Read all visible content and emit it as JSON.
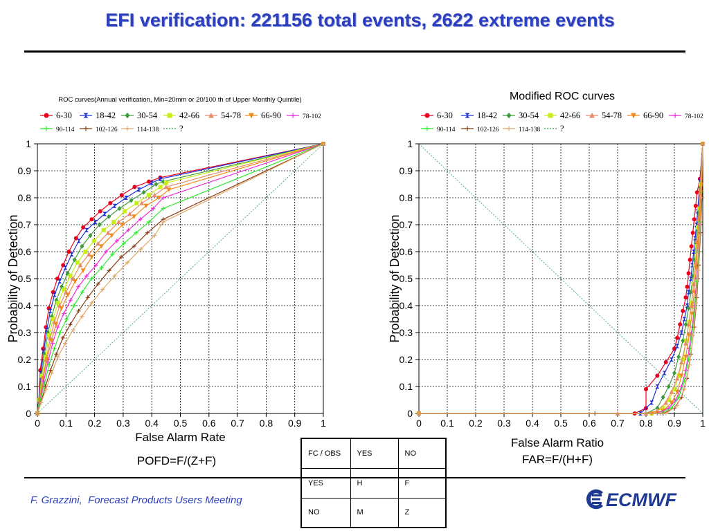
{
  "slide": {
    "title": "EFI verification: 221156 total events, 2622 extreme events",
    "footer": "F. Grazzini,  Forecast Products Users Meeting",
    "logo_text": "ECMWF",
    "formula_left": "POFD=F/(Z+F)",
    "formula_right_1": "False Alarm Ratio",
    "formula_right_2": "FAR=F/(H+F)"
  },
  "contingency_table": {
    "rows": [
      [
        "FC / OBS",
        "YES",
        "NO"
      ],
      [
        "YES",
        "H",
        "F"
      ],
      [
        "NO",
        "M",
        "Z"
      ]
    ]
  },
  "colors": {
    "title": "#2b3fbf",
    "diagonal": "#2e9b4a",
    "logo": "#1f3a93"
  },
  "chart_data": [
    {
      "type": "line",
      "title": "ROC curves(Annual verification, Min=20mm or 20/100 th of Upper Monthly Quintile)",
      "xlabel": "False Alarm Rate",
      "ylabel": "Probability of Detection",
      "xlim": [
        0,
        1
      ],
      "ylim": [
        0,
        1
      ],
      "xticks": [
        "0",
        "0.1",
        "0.2",
        "0.3",
        "0.4",
        "0.5",
        "0.6",
        "0.7",
        "0.8",
        "0.9",
        "1"
      ],
      "yticks": [
        "0",
        "0.1",
        "0.2",
        "0.3",
        "0.4",
        "0.5",
        "0.6",
        "0.7",
        "0.8",
        "0.9",
        "1"
      ],
      "grid": true,
      "legend": "top",
      "series": [
        {
          "name": "6-30",
          "color": "#e8001c",
          "marker": "circle",
          "x": [
            0,
            0.005,
            0.01,
            0.02,
            0.03,
            0.04,
            0.055,
            0.07,
            0.09,
            0.11,
            0.135,
            0.16,
            0.19,
            0.22,
            0.255,
            0.295,
            0.34,
            0.39,
            0.43,
            1
          ],
          "y": [
            0,
            0.05,
            0.16,
            0.24,
            0.32,
            0.39,
            0.45,
            0.5,
            0.55,
            0.6,
            0.65,
            0.69,
            0.72,
            0.75,
            0.78,
            0.81,
            0.84,
            0.86,
            0.875,
            1
          ]
        },
        {
          "name": "18-42",
          "color": "#1b2fd6",
          "marker": "bowtie",
          "x": [
            0,
            0.005,
            0.012,
            0.022,
            0.033,
            0.045,
            0.06,
            0.078,
            0.098,
            0.12,
            0.145,
            0.172,
            0.203,
            0.235,
            0.27,
            0.31,
            0.355,
            0.4,
            0.43,
            1
          ],
          "y": [
            0,
            0.05,
            0.15,
            0.23,
            0.31,
            0.38,
            0.44,
            0.49,
            0.54,
            0.59,
            0.64,
            0.68,
            0.71,
            0.74,
            0.77,
            0.8,
            0.83,
            0.855,
            0.87,
            1
          ]
        },
        {
          "name": "30-54",
          "color": "#3d9a3d",
          "marker": "diamond",
          "x": [
            0,
            0.006,
            0.014,
            0.025,
            0.037,
            0.05,
            0.066,
            0.085,
            0.106,
            0.13,
            0.156,
            0.185,
            0.217,
            0.25,
            0.287,
            0.328,
            0.372,
            0.415,
            0.44,
            1
          ],
          "y": [
            0,
            0.05,
            0.14,
            0.22,
            0.3,
            0.36,
            0.42,
            0.47,
            0.52,
            0.57,
            0.62,
            0.66,
            0.7,
            0.73,
            0.76,
            0.79,
            0.82,
            0.85,
            0.86,
            1
          ]
        },
        {
          "name": "42-66",
          "color": "#c8ee1a",
          "marker": "square",
          "x": [
            0,
            0.007,
            0.016,
            0.028,
            0.041,
            0.055,
            0.072,
            0.092,
            0.115,
            0.14,
            0.168,
            0.198,
            0.232,
            0.267,
            0.305,
            0.347,
            0.39,
            0.43,
            0.45,
            1
          ],
          "y": [
            0,
            0.05,
            0.14,
            0.21,
            0.29,
            0.35,
            0.41,
            0.46,
            0.51,
            0.56,
            0.6,
            0.64,
            0.68,
            0.71,
            0.75,
            0.78,
            0.81,
            0.84,
            0.855,
            1
          ]
        },
        {
          "name": "54-78",
          "color": "#e88a6a",
          "marker": "triangle",
          "x": [
            0,
            0.008,
            0.018,
            0.031,
            0.045,
            0.06,
            0.078,
            0.1,
            0.124,
            0.15,
            0.18,
            0.212,
            0.247,
            0.284,
            0.323,
            0.365,
            0.41,
            0.45,
            1
          ],
          "y": [
            0,
            0.05,
            0.13,
            0.2,
            0.28,
            0.34,
            0.4,
            0.45,
            0.5,
            0.55,
            0.59,
            0.63,
            0.67,
            0.71,
            0.74,
            0.78,
            0.81,
            0.84,
            1
          ]
        },
        {
          "name": "66-90",
          "color": "#f08a1e",
          "marker": "invtriangle",
          "x": [
            0,
            0.008,
            0.02,
            0.034,
            0.049,
            0.065,
            0.084,
            0.107,
            0.132,
            0.16,
            0.19,
            0.224,
            0.26,
            0.298,
            0.338,
            0.38,
            0.425,
            0.46,
            1
          ],
          "y": [
            0,
            0.05,
            0.13,
            0.2,
            0.27,
            0.33,
            0.39,
            0.44,
            0.49,
            0.53,
            0.58,
            0.62,
            0.66,
            0.7,
            0.73,
            0.77,
            0.8,
            0.83,
            1
          ]
        },
        {
          "name": "78-102",
          "color": "#ec2ed9",
          "marker": "plus",
          "x": [
            0,
            0.01,
            0.022,
            0.037,
            0.053,
            0.071,
            0.092,
            0.116,
            0.143,
            0.172,
            0.205,
            0.24,
            0.278,
            0.318,
            0.36,
            0.405,
            0.44,
            1
          ],
          "y": [
            0,
            0.05,
            0.12,
            0.19,
            0.26,
            0.32,
            0.37,
            0.42,
            0.47,
            0.51,
            0.55,
            0.6,
            0.64,
            0.68,
            0.72,
            0.76,
            0.8,
            1
          ]
        },
        {
          "name": "90-114",
          "color": "#2ee82e",
          "marker": "plus",
          "x": [
            0,
            0.011,
            0.025,
            0.041,
            0.059,
            0.079,
            0.102,
            0.128,
            0.157,
            0.189,
            0.224,
            0.262,
            0.302,
            0.345,
            0.39,
            0.44,
            1
          ],
          "y": [
            0,
            0.05,
            0.11,
            0.18,
            0.24,
            0.3,
            0.35,
            0.4,
            0.45,
            0.5,
            0.54,
            0.59,
            0.63,
            0.67,
            0.71,
            0.76,
            1
          ]
        },
        {
          "name": "102-126",
          "color": "#8c3a12",
          "marker": "plus",
          "x": [
            0,
            0.012,
            0.028,
            0.046,
            0.066,
            0.089,
            0.115,
            0.144,
            0.176,
            0.212,
            0.251,
            0.293,
            0.338,
            0.385,
            0.44,
            1
          ],
          "y": [
            0,
            0.04,
            0.1,
            0.16,
            0.22,
            0.28,
            0.33,
            0.38,
            0.43,
            0.48,
            0.53,
            0.58,
            0.62,
            0.67,
            0.72,
            1
          ]
        },
        {
          "name": "114-138",
          "color": "#e0a86a",
          "marker": "plus",
          "x": [
            0,
            0.013,
            0.03,
            0.05,
            0.072,
            0.097,
            0.125,
            0.156,
            0.19,
            0.228,
            0.27,
            0.315,
            0.362,
            0.41,
            0.44,
            1
          ],
          "y": [
            0,
            0.04,
            0.09,
            0.15,
            0.21,
            0.26,
            0.31,
            0.36,
            0.41,
            0.46,
            0.51,
            0.56,
            0.61,
            0.66,
            0.71,
            1
          ]
        },
        {
          "name": "?",
          "color": "#2e9b4a",
          "marker": "none",
          "dashed": true,
          "x": [
            0,
            1
          ],
          "y": [
            0,
            1
          ]
        }
      ]
    },
    {
      "type": "line",
      "title": "Modified ROC curves",
      "xlabel": "False Alarm Ratio",
      "ylabel": "Probability of Detection",
      "xlim": [
        0,
        1
      ],
      "ylim": [
        0,
        1
      ],
      "xticks": [
        "0",
        "0.1",
        "0.2",
        "0.3",
        "0.4",
        "0.5",
        "0.6",
        "0.7",
        "0.8",
        "0.9",
        "1"
      ],
      "yticks": [
        "0",
        "0.1",
        "0.2",
        "0.3",
        "0.4",
        "0.5",
        "0.6",
        "0.7",
        "0.8",
        "0.9",
        "1"
      ],
      "grid": true,
      "legend": "top",
      "series": [
        {
          "name": "6-30",
          "color": "#e8001c",
          "marker": "circle",
          "x": [
            0,
            0.76,
            0.8,
            0.8,
            0.84,
            0.87,
            0.9,
            0.91,
            0.92,
            0.93,
            0.94,
            0.945,
            0.95,
            0.955,
            0.96,
            0.965,
            0.97,
            0.975,
            0.98,
            0.99,
            1
          ],
          "y": [
            0,
            0,
            0.02,
            0.09,
            0.14,
            0.19,
            0.24,
            0.28,
            0.33,
            0.38,
            0.43,
            0.47,
            0.52,
            0.57,
            0.62,
            0.67,
            0.72,
            0.77,
            0.82,
            0.87,
            1
          ]
        },
        {
          "name": "18-42",
          "color": "#1b2fd6",
          "marker": "bowtie",
          "x": [
            0,
            0.78,
            0.82,
            0.84,
            0.865,
            0.89,
            0.91,
            0.925,
            0.935,
            0.945,
            0.95,
            0.958,
            0.963,
            0.968,
            0.973,
            0.978,
            0.982,
            0.99,
            1
          ],
          "y": [
            0,
            0,
            0.04,
            0.1,
            0.15,
            0.2,
            0.25,
            0.3,
            0.35,
            0.4,
            0.45,
            0.5,
            0.55,
            0.6,
            0.65,
            0.7,
            0.75,
            0.86,
            1
          ]
        },
        {
          "name": "30-54",
          "color": "#3d9a3d",
          "marker": "diamond",
          "x": [
            0,
            0.8,
            0.84,
            0.86,
            0.88,
            0.9,
            0.915,
            0.93,
            0.94,
            0.95,
            0.958,
            0.965,
            0.97,
            0.975,
            0.98,
            0.985,
            0.99,
            1
          ],
          "y": [
            0,
            0,
            0.02,
            0.06,
            0.1,
            0.15,
            0.21,
            0.27,
            0.33,
            0.39,
            0.45,
            0.51,
            0.57,
            0.63,
            0.69,
            0.75,
            0.84,
            1
          ]
        },
        {
          "name": "42-66",
          "color": "#c8ee1a",
          "marker": "square",
          "x": [
            0,
            0.82,
            0.86,
            0.88,
            0.9,
            0.915,
            0.93,
            0.942,
            0.952,
            0.96,
            0.967,
            0.973,
            0.978,
            0.983,
            0.988,
            0.993,
            1
          ],
          "y": [
            0,
            0,
            0.02,
            0.05,
            0.09,
            0.14,
            0.2,
            0.27,
            0.34,
            0.41,
            0.48,
            0.55,
            0.62,
            0.69,
            0.76,
            0.85,
            1
          ]
        },
        {
          "name": "54-78",
          "color": "#e88a6a",
          "marker": "triangle",
          "x": [
            0,
            0.7,
            0.8,
            0.84,
            0.87,
            0.89,
            0.91,
            0.925,
            0.94,
            0.95,
            0.96,
            0.968,
            0.975,
            0.98,
            0.985,
            0.99,
            1
          ],
          "y": [
            0,
            0,
            0,
            0.01,
            0.04,
            0.08,
            0.13,
            0.19,
            0.26,
            0.33,
            0.4,
            0.48,
            0.56,
            0.64,
            0.72,
            0.82,
            1
          ]
        },
        {
          "name": "66-90",
          "color": "#f08a1e",
          "marker": "invtriangle",
          "x": [
            0,
            0.82,
            0.86,
            0.89,
            0.91,
            0.925,
            0.94,
            0.952,
            0.962,
            0.97,
            0.977,
            0.983,
            0.988,
            0.993,
            1
          ],
          "y": [
            0,
            0,
            0.01,
            0.04,
            0.08,
            0.14,
            0.21,
            0.29,
            0.37,
            0.45,
            0.54,
            0.63,
            0.72,
            0.82,
            1
          ]
        },
        {
          "name": "78-102",
          "color": "#ec2ed9",
          "marker": "plus",
          "x": [
            0,
            0.84,
            0.88,
            0.905,
            0.925,
            0.94,
            0.952,
            0.963,
            0.972,
            0.979,
            0.985,
            0.99,
            0.995,
            1
          ],
          "y": [
            0,
            0,
            0.02,
            0.05,
            0.1,
            0.16,
            0.24,
            0.32,
            0.41,
            0.5,
            0.6,
            0.7,
            0.8,
            1
          ]
        },
        {
          "name": "90-114",
          "color": "#2ee82e",
          "marker": "plus",
          "x": [
            0,
            0.85,
            0.89,
            0.915,
            0.935,
            0.95,
            0.962,
            0.972,
            0.98,
            0.986,
            0.991,
            0.996,
            1
          ],
          "y": [
            0,
            0,
            0.02,
            0.06,
            0.12,
            0.2,
            0.29,
            0.39,
            0.49,
            0.6,
            0.71,
            0.82,
            1
          ]
        },
        {
          "name": "102-126",
          "color": "#8c3a12",
          "marker": "plus",
          "x": [
            0,
            0.62,
            0.86,
            0.9,
            0.925,
            0.944,
            0.958,
            0.97,
            0.979,
            0.986,
            0.992,
            0.997,
            1
          ],
          "y": [
            0,
            0,
            0,
            0.02,
            0.06,
            0.13,
            0.22,
            0.32,
            0.43,
            0.55,
            0.67,
            0.8,
            1
          ]
        },
        {
          "name": "114-138",
          "color": "#e0a86a",
          "marker": "plus",
          "x": [
            0,
            0.87,
            0.91,
            0.935,
            0.953,
            0.966,
            0.976,
            0.984,
            0.99,
            0.995,
            1
          ],
          "y": [
            0,
            0,
            0.03,
            0.09,
            0.18,
            0.29,
            0.41,
            0.53,
            0.66,
            0.8,
            1
          ]
        },
        {
          "name": "?",
          "color": "#2e9b4a",
          "marker": "none",
          "dashed": true,
          "x": [
            0,
            1
          ],
          "y": [
            1,
            0
          ]
        }
      ]
    }
  ]
}
